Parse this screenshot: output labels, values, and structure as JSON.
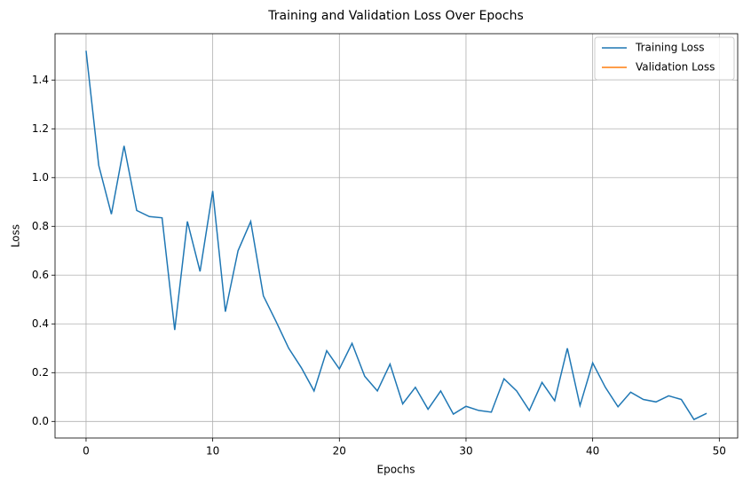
{
  "chart_data": {
    "type": "line",
    "title": "Training and Validation Loss Over Epochs",
    "xlabel": "Epochs",
    "ylabel": "Loss",
    "x": [
      0,
      1,
      2,
      3,
      4,
      5,
      6,
      7,
      8,
      9,
      10,
      11,
      12,
      13,
      14,
      15,
      16,
      17,
      18,
      19,
      20,
      21,
      22,
      23,
      24,
      25,
      26,
      27,
      28,
      29,
      30,
      31,
      32,
      33,
      34,
      35,
      36,
      37,
      38,
      39,
      40,
      41,
      42,
      43,
      44,
      45,
      46,
      47,
      48,
      49
    ],
    "series": [
      {
        "name": "Training Loss",
        "color": "#1f77b4",
        "values": [
          1.52,
          1.05,
          0.85,
          1.13,
          0.865,
          0.84,
          0.835,
          0.375,
          0.82,
          0.615,
          0.945,
          0.45,
          0.7,
          0.82,
          0.515,
          0.41,
          0.3,
          0.22,
          0.125,
          0.29,
          0.215,
          0.32,
          0.185,
          0.125,
          0.235,
          0.072,
          0.14,
          0.05,
          0.125,
          0.03,
          0.062,
          0.045,
          0.038,
          0.175,
          0.125,
          0.045,
          0.16,
          0.085,
          0.3,
          0.065,
          0.24,
          0.14,
          0.06,
          0.12,
          0.09,
          0.08,
          0.105,
          0.09,
          0.008,
          0.033
        ]
      },
      {
        "name": "Validation Loss",
        "color": "#ff7f0e",
        "values": [
          null,
          null,
          null,
          null,
          null,
          null,
          null,
          null,
          null,
          null,
          null,
          null,
          null,
          null,
          null,
          null,
          null,
          null,
          null,
          null,
          null,
          null,
          null,
          null,
          null,
          null,
          null,
          null,
          null,
          null,
          null,
          null,
          null,
          null,
          null,
          null,
          null,
          null,
          null,
          null,
          null,
          null,
          null,
          null,
          null,
          null,
          null,
          null,
          null,
          null
        ]
      }
    ],
    "xlim": [
      -2.45,
      51.45
    ],
    "xticks": [
      0,
      10,
      20,
      30,
      40,
      50
    ],
    "ylim": [
      -0.068,
      1.59
    ],
    "yticks": [
      {
        "value": 0,
        "label": "0.0"
      },
      0.2,
      0.4,
      0.6,
      0.8,
      {
        "value": 1,
        "label": "1.0"
      },
      1.2,
      1.4
    ],
    "grid": true,
    "legend": "upper right"
  }
}
